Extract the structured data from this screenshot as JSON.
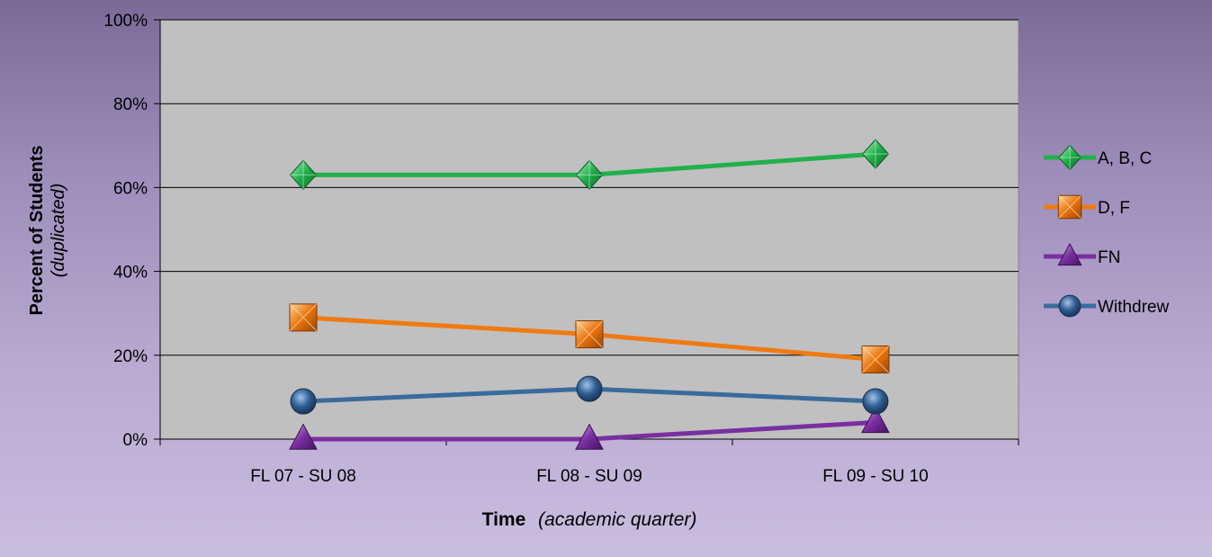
{
  "chart_data": {
    "type": "line",
    "categories": [
      "FL 07 - SU 08",
      "FL 08 - SU 09",
      "FL 09 - SU 10"
    ],
    "ylim": [
      0,
      100
    ],
    "yticks": [
      "0%",
      "20%",
      "40%",
      "60%",
      "80%",
      "100%"
    ],
    "ylabel": "Percent of Students",
    "ylabel_sub": "(duplicated)",
    "xlabel": "Time",
    "xlabel_sub": "(academic quarter)",
    "grid": true,
    "legend_position": "right",
    "series": [
      {
        "name": "A, B, C",
        "values": [
          63,
          63,
          68
        ],
        "color": "#22b04b",
        "marker": "diamond"
      },
      {
        "name": "D, F",
        "values": [
          29,
          25,
          19
        ],
        "color": "#f07a10",
        "marker": "square"
      },
      {
        "name": "FN",
        "values": [
          0,
          0,
          4
        ],
        "color": "#7a2fa0",
        "marker": "triangle"
      },
      {
        "name": "Withdrew",
        "values": [
          9,
          12,
          9
        ],
        "color": "#3a6b9c",
        "marker": "circle"
      }
    ]
  }
}
